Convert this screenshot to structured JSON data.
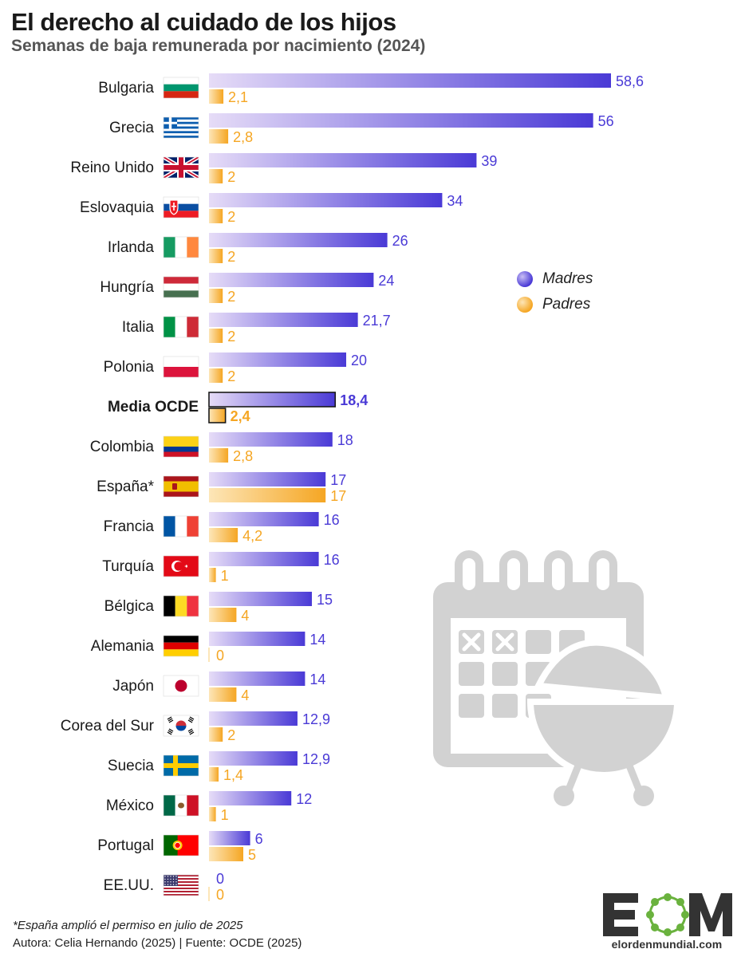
{
  "title": "El derecho al cuidado de los hijos",
  "subtitle": "Semanas de baja remunerada por nacimiento (2024)",
  "legend": [
    {
      "label": "Madres",
      "color": "#4a3ad6"
    },
    {
      "label": "Padres",
      "color": "#f5a623"
    }
  ],
  "footnote": "*España amplió el permiso en julio de 2025",
  "credits": "Autora: Celia Hernando (2025) | Fuente: OCDE (2025)",
  "logo": {
    "text": "EOM",
    "url_text": "elordenmundial.com"
  },
  "illustration_icon": "calendar-and-bbq-grill-icon",
  "chart_data": {
    "type": "bar",
    "orientation": "horizontal",
    "xlim": [
      0,
      58.6
    ],
    "categories": [
      "Bulgaria",
      "Grecia",
      "Reino Unido",
      "Eslovaquia",
      "Irlanda",
      "Hungría",
      "Italia",
      "Polonia",
      "Media OCDE",
      "Colombia",
      "España*",
      "Francia",
      "Turquía",
      "Bélgica",
      "Alemania",
      "Japón",
      "Corea del Sur",
      "Suecia",
      "México",
      "Portugal",
      "EE.UU."
    ],
    "flags": [
      "bulgaria",
      "greece",
      "uk",
      "slovakia",
      "ireland",
      "hungary",
      "italy",
      "poland",
      null,
      "colombia",
      "spain",
      "france",
      "turkey",
      "belgium",
      "germany",
      "japan",
      "south-korea",
      "sweden",
      "mexico",
      "portugal",
      "usa"
    ],
    "highlight": "Media OCDE",
    "series": [
      {
        "name": "Madres",
        "color": "#4a3ad6",
        "values": [
          58.6,
          56,
          39,
          34,
          26,
          24,
          21.7,
          20,
          18.4,
          18,
          17,
          16,
          16,
          15,
          14,
          14,
          12.9,
          12.9,
          12,
          6,
          0
        ],
        "labels": [
          "58,6",
          "56",
          "39",
          "34",
          "26",
          "24",
          "21,7",
          "20",
          "18,4",
          "18",
          "17",
          "16",
          "16",
          "15",
          "14",
          "14",
          "12,9",
          "12,9",
          "12",
          "6",
          "0"
        ]
      },
      {
        "name": "Padres",
        "color": "#f5a623",
        "values": [
          2.1,
          2.8,
          2,
          2,
          2,
          2,
          2,
          2,
          2.4,
          2.8,
          17,
          4.2,
          1,
          4,
          0,
          4,
          2,
          1.4,
          1,
          5,
          0
        ],
        "labels": [
          "2,1",
          "2,8",
          "2",
          "2",
          "2",
          "2",
          "2",
          "2",
          "2,4",
          "2,8",
          "17",
          "4,2",
          "1",
          "4",
          "0",
          "4",
          "2",
          "1,4",
          "1",
          "5",
          "0"
        ]
      }
    ]
  }
}
